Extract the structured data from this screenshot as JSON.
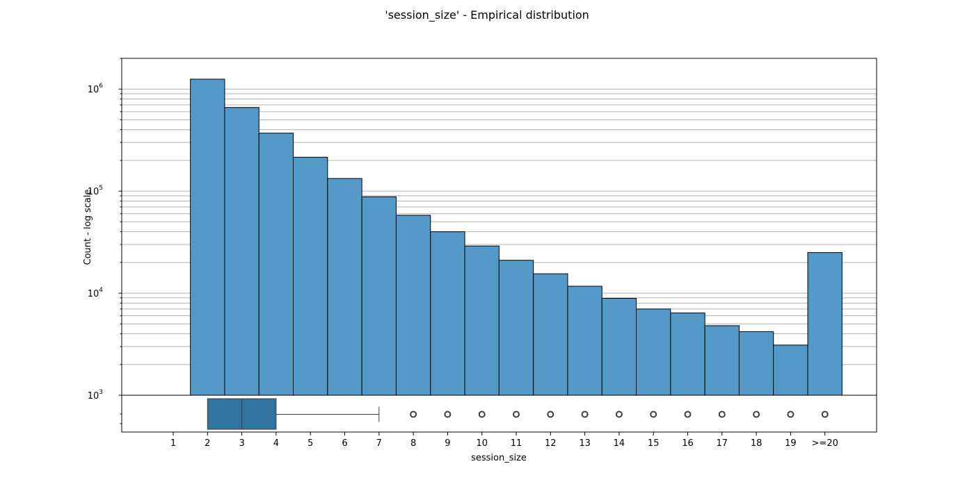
{
  "chart_data": {
    "type": "bar",
    "title": "'session_size' - Empirical distribution",
    "xlabel": "session_size",
    "ylabel": "Count - log scale",
    "yscale": "log",
    "ylim": [
      1000,
      2000000
    ],
    "y_tick_labels": [
      {
        "base": "10",
        "exp": "3"
      },
      {
        "base": "10",
        "exp": "4"
      },
      {
        "base": "10",
        "exp": "5"
      },
      {
        "base": "10",
        "exp": "6"
      }
    ],
    "y_tick_values": [
      1000,
      10000,
      100000,
      1000000
    ],
    "grid": "y-major-and-minor",
    "categories": [
      "1",
      "2",
      "3",
      "4",
      "5",
      "6",
      "7",
      "8",
      "9",
      "10",
      "11",
      "12",
      "13",
      "14",
      "15",
      "16",
      "17",
      "18",
      "19",
      ">=20"
    ],
    "values": [
      0,
      1250000,
      660000,
      370000,
      215000,
      133000,
      88000,
      58000,
      40000,
      29000,
      21000,
      15500,
      11700,
      8900,
      7000,
      6400,
      4800,
      4200,
      3100,
      25000
    ],
    "bar_color": "#5499c7",
    "boxplot": {
      "q1": 2,
      "median": 3,
      "q3": 4,
      "whisker_low": 2,
      "whisker_high": 7,
      "outliers": [
        8,
        9,
        10,
        11,
        12,
        13,
        14,
        15,
        16,
        17,
        18,
        19,
        20
      ],
      "color": "#3274a1"
    }
  }
}
